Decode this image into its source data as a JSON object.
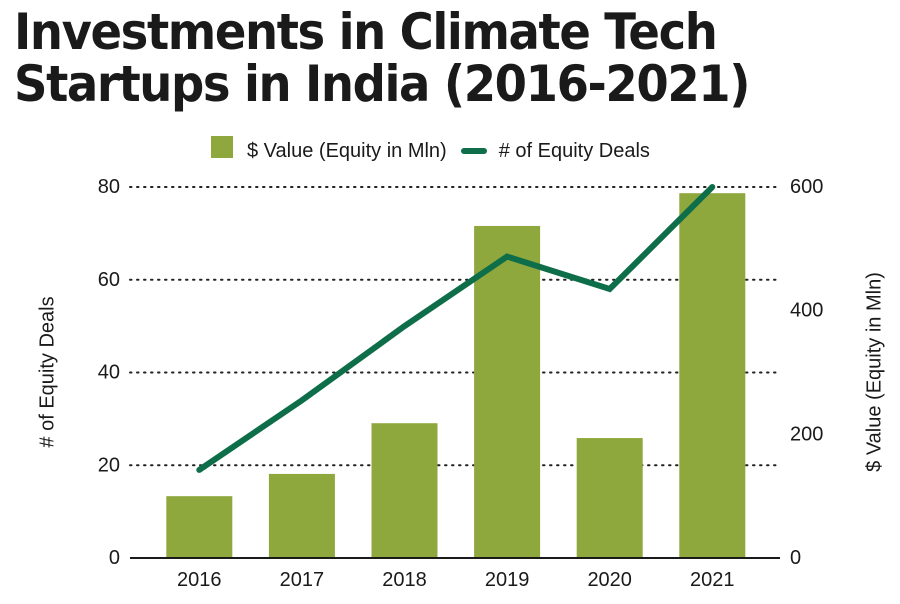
{
  "chart_data": {
    "type": "bar",
    "title": "Investments in Climate Tech Startups in India (2016-2021)",
    "title_lines": [
      "Investments in Climate Tech",
      "Startups in India (2016-2021)"
    ],
    "categories": [
      "2016",
      "2017",
      "2018",
      "2019",
      "2020",
      "2021"
    ],
    "series": [
      {
        "name": "$ Value (Equity in Mln)",
        "type": "bar",
        "axis": "right",
        "color": "#8fa83e",
        "values": [
          100,
          136,
          218,
          537,
          194,
          590
        ]
      },
      {
        "name": "# of Equity Deals",
        "type": "line",
        "axis": "left",
        "color": "#0f6e4a",
        "values": [
          19,
          34,
          50,
          65,
          58,
          80
        ]
      }
    ],
    "left_axis": {
      "label": "# of Equity Deals",
      "range": [
        0,
        80
      ],
      "ticks": [
        0,
        20,
        40,
        60,
        80
      ]
    },
    "right_axis": {
      "label": "$ Value (Equity in Mln)",
      "range": [
        0,
        600
      ],
      "ticks": [
        0,
        200,
        400,
        600
      ]
    },
    "xlabel": "",
    "grid": "dotted horizontal at left-axis ticks",
    "legend": {
      "placement": "top-center",
      "entries": [
        "$ Value (Equity in Mln)",
        "# of Equity Deals"
      ]
    }
  }
}
